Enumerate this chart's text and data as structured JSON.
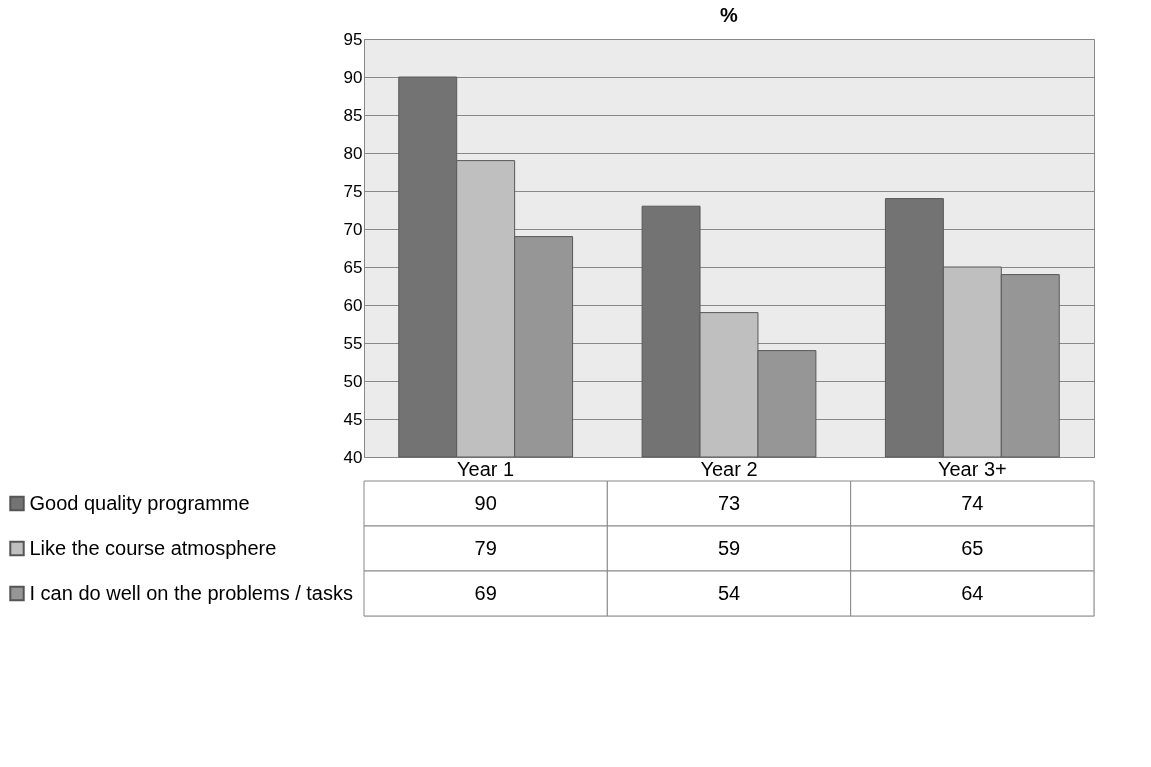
{
  "chart_data": {
    "type": "bar",
    "title": "%",
    "categories": [
      "Year 1",
      "Year 2",
      "Year 3+"
    ],
    "series": [
      {
        "name": "Good quality programme",
        "color": "#737373",
        "values": [
          90,
          73,
          74
        ]
      },
      {
        "name": "Like the course atmosphere",
        "color": "#bfbfbf",
        "values": [
          79,
          59,
          65
        ]
      },
      {
        "name": "I can do well on the problems / tasks",
        "color": "#969696",
        "values": [
          69,
          54,
          64
        ]
      }
    ],
    "ylim": [
      40,
      95
    ],
    "yticks": [
      40,
      45,
      50,
      55,
      60,
      65,
      70,
      75,
      80,
      85,
      90,
      95
    ],
    "grid": "y",
    "legend": "bottom left",
    "data_labels": true
  }
}
